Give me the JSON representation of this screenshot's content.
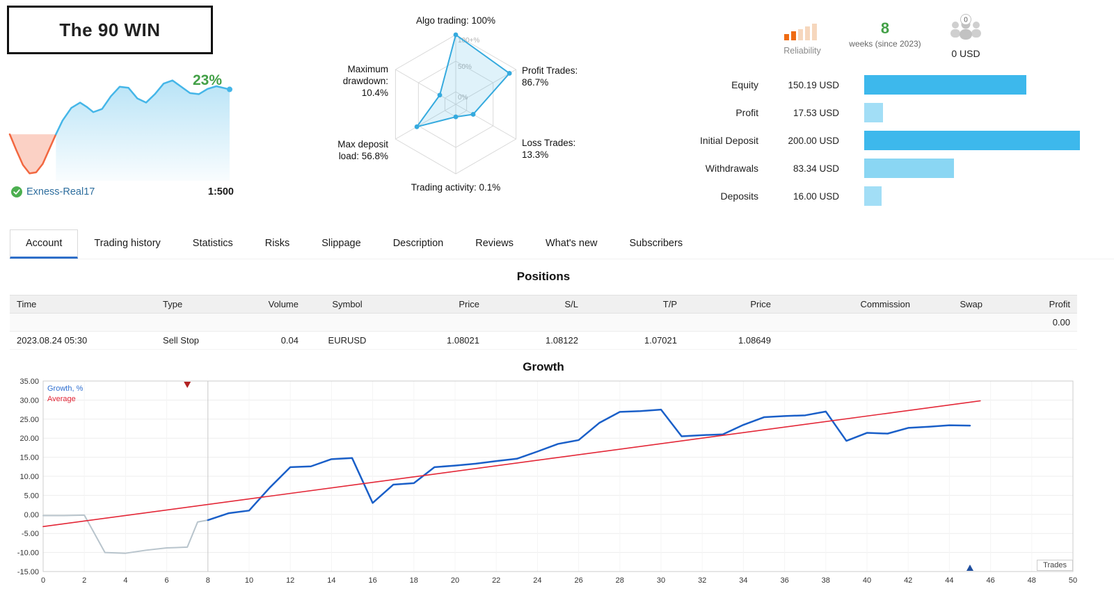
{
  "signal": {
    "title": "The 90 WIN",
    "growth_badge": "23%",
    "broker": "Exness-Real17",
    "leverage": "1:500"
  },
  "summary": {
    "reliability_label": "Reliability",
    "weeks_value": "8",
    "weeks_label": "weeks (since 2023)",
    "subscribers_badge": "0",
    "funds_label": "0 USD",
    "bar_max_amount": 200,
    "rows": [
      {
        "label": "Equity",
        "value": "150.19 USD",
        "amount": 150.19,
        "color": "#3db8ec"
      },
      {
        "label": "Profit",
        "value": "17.53 USD",
        "amount": 17.53,
        "color": "#a2def6"
      },
      {
        "label": "Initial Deposit",
        "value": "200.00 USD",
        "amount": 200.0,
        "color": "#3db8ec"
      },
      {
        "label": "Withdrawals",
        "value": "83.34 USD",
        "amount": 83.34,
        "color": "#8ad6f3"
      },
      {
        "label": "Deposits",
        "value": "16.00 USD",
        "amount": 16.0,
        "color": "#a2def6"
      }
    ]
  },
  "tabs": [
    {
      "label": "Account",
      "active": true
    },
    {
      "label": "Trading history"
    },
    {
      "label": "Statistics"
    },
    {
      "label": "Risks"
    },
    {
      "label": "Slippage"
    },
    {
      "label": "Description"
    },
    {
      "label": "Reviews"
    },
    {
      "label": "What's new"
    },
    {
      "label": "Subscribers"
    }
  ],
  "positions": {
    "title": "Positions",
    "columns": [
      "Time",
      "Type",
      "Volume",
      "Symbol",
      "Price",
      "S/L",
      "T/P",
      "Price",
      "Commission",
      "Swap",
      "Profit"
    ],
    "summary_row": {
      "profit": "0.00"
    },
    "rows": [
      {
        "time": "2023.08.24 05:30",
        "type": "Sell Stop",
        "volume": "0.04",
        "symbol": "EURUSD",
        "price": "1.08021",
        "sl": "1.08122",
        "tp": "1.07021",
        "price2": "1.08649",
        "commission": "",
        "swap": "",
        "profit": ""
      }
    ]
  },
  "growth_section": {
    "title": "Growth",
    "axis_label": "Trades"
  },
  "chart_data": [
    {
      "type": "radar",
      "name": "signal-radar",
      "axes": [
        {
          "label": "Algo trading: 100%",
          "value": 100
        },
        {
          "label": "Profit Trades:\n86.7%",
          "value": 86.7
        },
        {
          "label": "Loss Trades:\n13.3%",
          "value": 13.3
        },
        {
          "label": "Trading activity: 0.1%",
          "value": 0.1
        },
        {
          "label": "Max deposit\nload: 56.8%",
          "value": 56.8
        },
        {
          "label": "Maximum\ndrawdown:\n10.4%",
          "value": 10.4
        }
      ],
      "rings": [
        "100+%",
        "50%",
        "0%"
      ],
      "color": "#35aade"
    },
    {
      "type": "area",
      "name": "mini-growth",
      "percent_label": "23%",
      "split_x": 21,
      "colors": {
        "start": "#f26740",
        "main": "#45b6e8"
      },
      "points": [
        [
          0,
          0.42
        ],
        [
          3,
          0.27
        ],
        [
          6,
          0.13
        ],
        [
          9,
          0.05
        ],
        [
          12,
          0.06
        ],
        [
          15,
          0.14
        ],
        [
          18,
          0.28
        ],
        [
          21,
          0.42
        ],
        [
          24,
          0.55
        ],
        [
          28,
          0.67
        ],
        [
          32,
          0.72
        ],
        [
          35,
          0.68
        ],
        [
          38,
          0.63
        ],
        [
          42,
          0.66
        ],
        [
          46,
          0.78
        ],
        [
          50,
          0.87
        ],
        [
          54,
          0.86
        ],
        [
          58,
          0.76
        ],
        [
          62,
          0.72
        ],
        [
          66,
          0.8
        ],
        [
          70,
          0.9
        ],
        [
          74,
          0.93
        ],
        [
          78,
          0.87
        ],
        [
          82,
          0.81
        ],
        [
          86,
          0.8
        ],
        [
          90,
          0.85
        ],
        [
          94,
          0.875
        ],
        [
          100,
          0.845
        ]
      ]
    },
    {
      "type": "line",
      "name": "growth-history",
      "title": "Growth",
      "xlabel": "Trades",
      "xlim": [
        0,
        50
      ],
      "ylim": [
        -15,
        35
      ],
      "x_tick_step": 2,
      "y_tick_step": 5,
      "boundary_x": 8,
      "legend": [
        {
          "name": "Growth, %",
          "color": "#2f6fd0"
        },
        {
          "name": "Average",
          "color": "#e32636"
        }
      ],
      "markers": [
        {
          "x": 7,
          "position": "top",
          "color": "#b22222",
          "shape": "triangle-down"
        },
        {
          "x": 45,
          "position": "bottom",
          "color": "#1f4e9e",
          "shape": "triangle-up"
        }
      ],
      "series": [
        {
          "name": "pre-subscription",
          "color": "#b8c4cc",
          "width": 2,
          "points": [
            [
              0,
              -0.3
            ],
            [
              1,
              -0.3
            ],
            [
              2,
              -0.2
            ],
            [
              3,
              -10.0
            ],
            [
              4,
              -10.2
            ],
            [
              5,
              -9.4
            ],
            [
              6,
              -8.8
            ],
            [
              7,
              -8.6
            ],
            [
              7.5,
              -2.0
            ],
            [
              8,
              -1.5
            ]
          ]
        },
        {
          "name": "Growth, %",
          "color": "#1a5fc8",
          "width": 2.5,
          "points": [
            [
              8,
              -1.5
            ],
            [
              9,
              0.3
            ],
            [
              10,
              1.0
            ],
            [
              11,
              7.0
            ],
            [
              12,
              12.4
            ],
            [
              13,
              12.6
            ],
            [
              14,
              14.5
            ],
            [
              15,
              14.8
            ],
            [
              16,
              3.0
            ],
            [
              17,
              7.8
            ],
            [
              18,
              8.2
            ],
            [
              19,
              12.4
            ],
            [
              20,
              12.8
            ],
            [
              21,
              13.3
            ],
            [
              22,
              14.0
            ],
            [
              23,
              14.6
            ],
            [
              24,
              16.5
            ],
            [
              25,
              18.5
            ],
            [
              26,
              19.5
            ],
            [
              27,
              24.0
            ],
            [
              28,
              26.9
            ],
            [
              29,
              27.1
            ],
            [
              30,
              27.5
            ],
            [
              31,
              20.5
            ],
            [
              32,
              20.8
            ],
            [
              33,
              21.0
            ],
            [
              34,
              23.5
            ],
            [
              35,
              25.5
            ],
            [
              36,
              25.8
            ],
            [
              37,
              26.0
            ],
            [
              38,
              27.0
            ],
            [
              39,
              19.3
            ],
            [
              40,
              21.4
            ],
            [
              41,
              21.2
            ],
            [
              42,
              22.7
            ],
            [
              43,
              23.0
            ],
            [
              44,
              23.4
            ],
            [
              45,
              23.3
            ]
          ]
        },
        {
          "name": "Average",
          "color": "#e32636",
          "width": 1.6,
          "points": [
            [
              0,
              -3.2
            ],
            [
              45.5,
              29.8
            ]
          ]
        }
      ]
    }
  ]
}
